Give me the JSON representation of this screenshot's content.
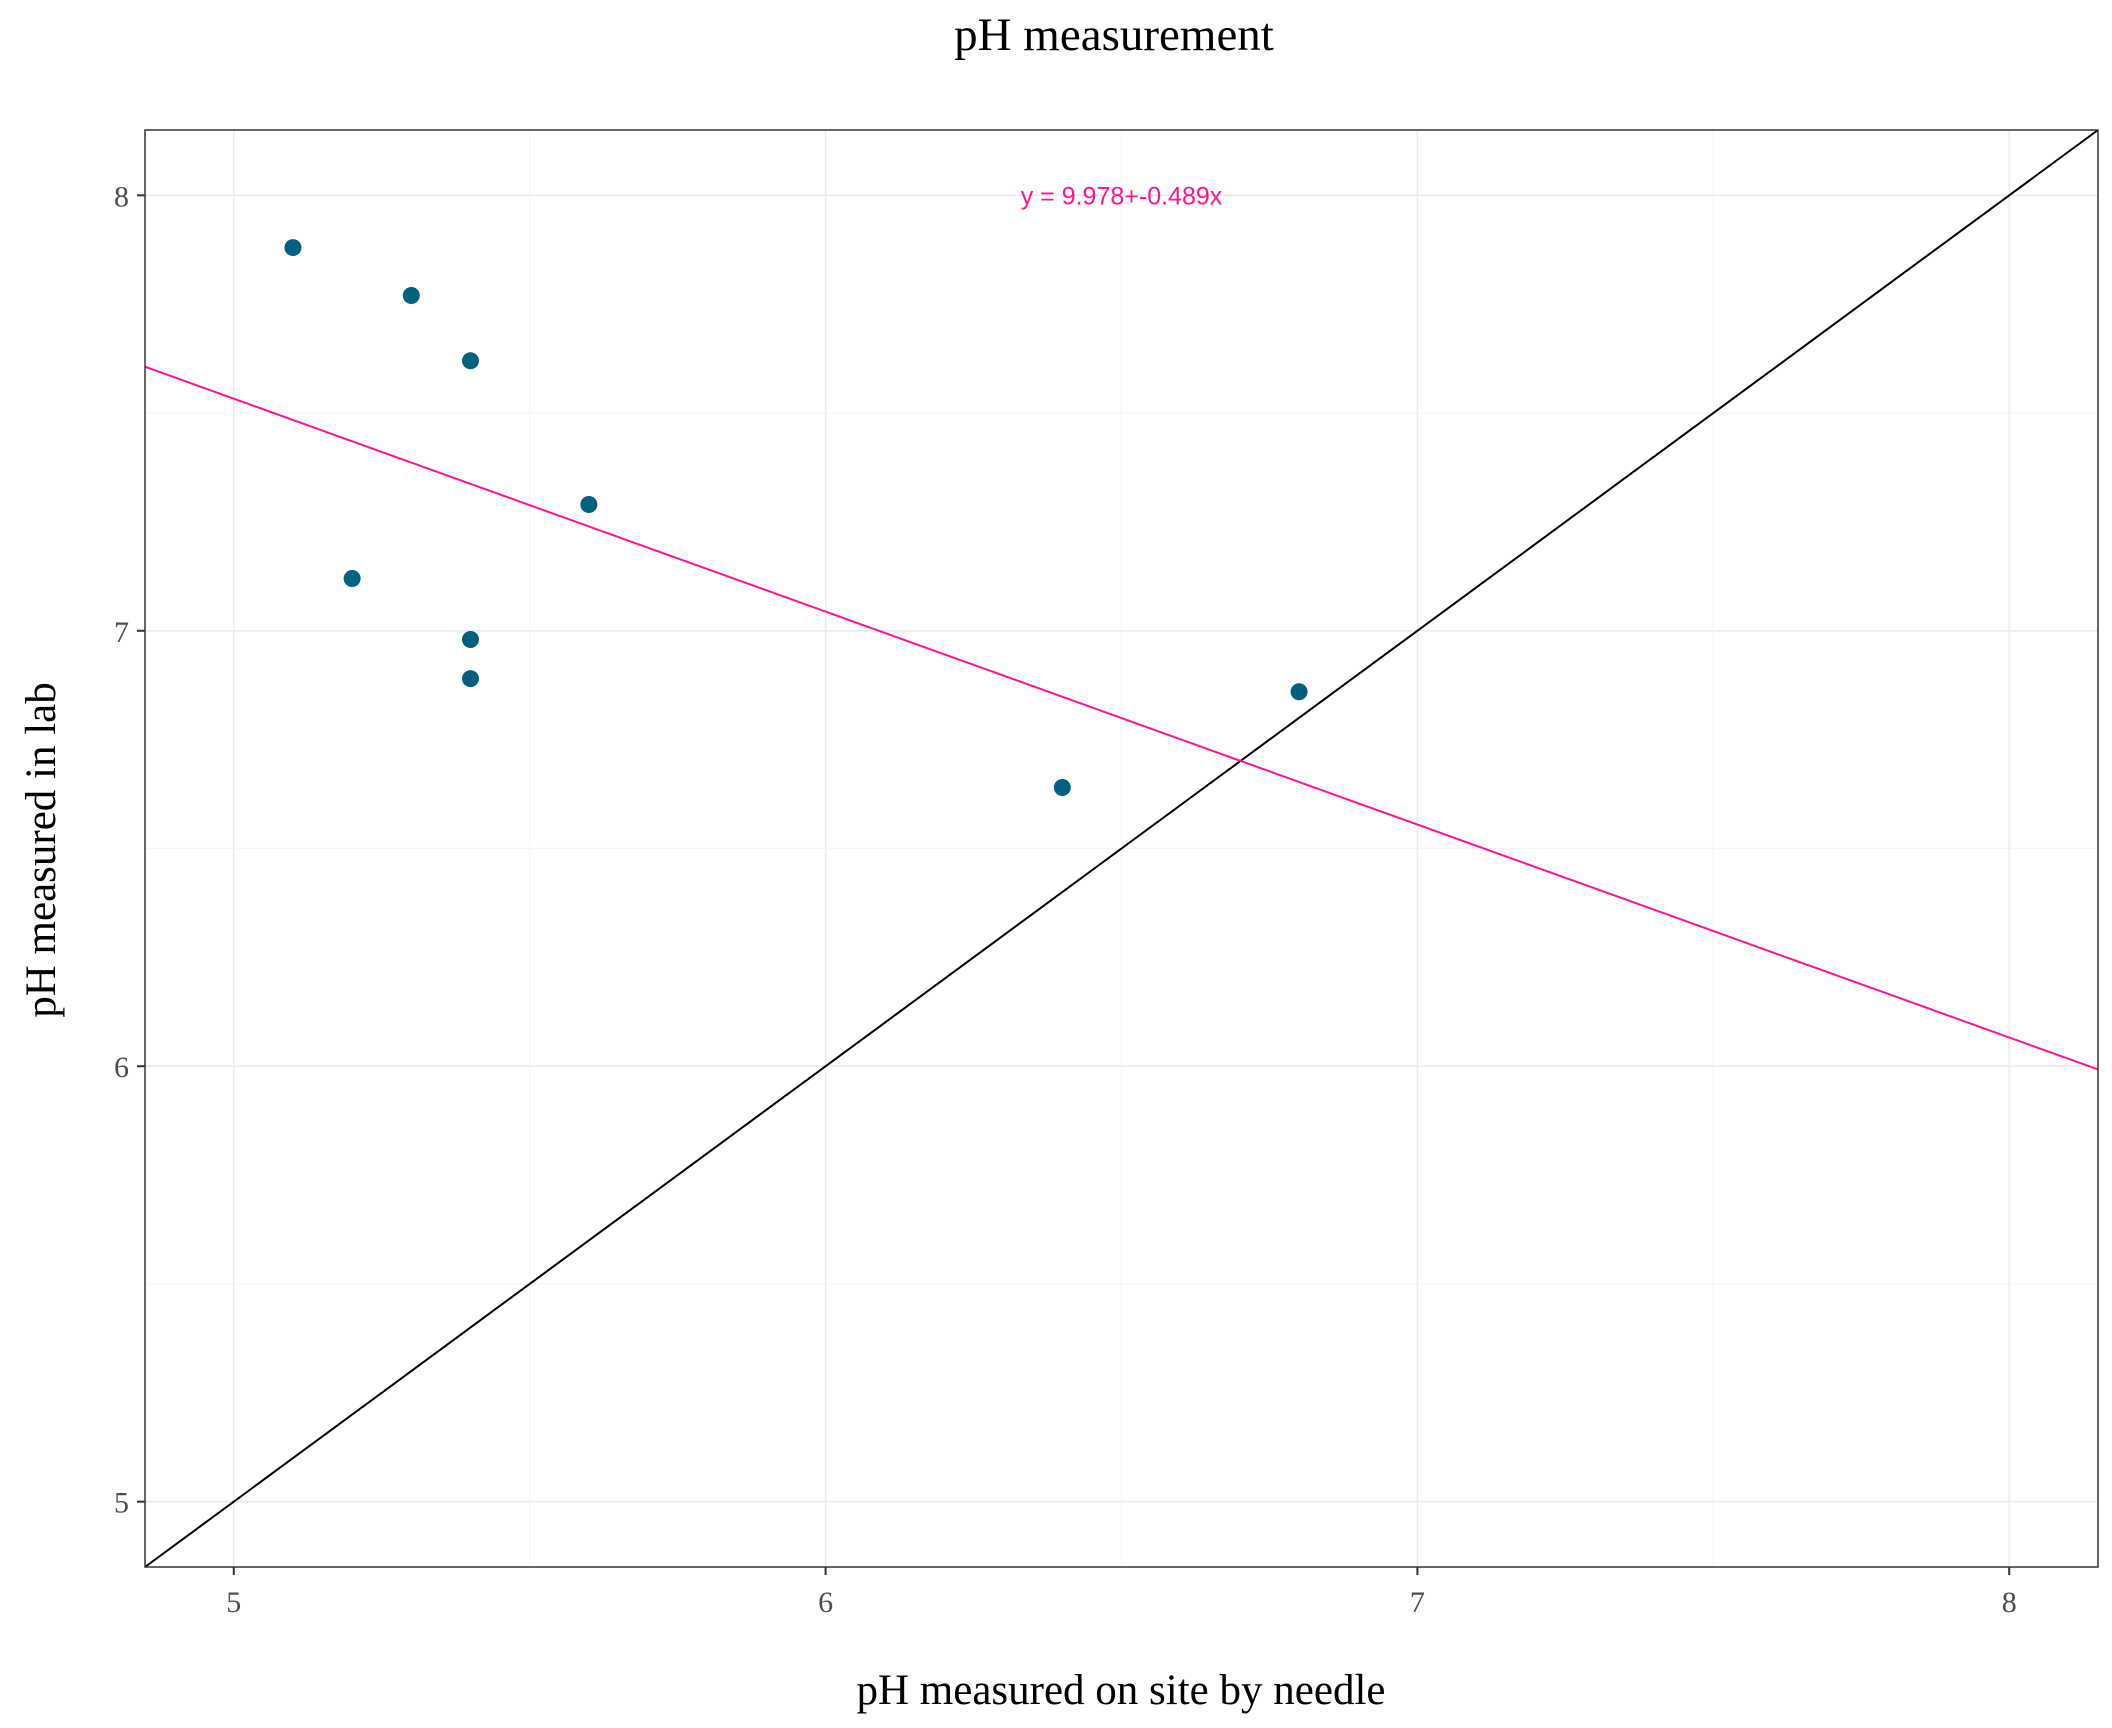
{
  "chart_data": {
    "type": "scatter",
    "title": "pH measurement",
    "xlabel": "pH measured on site by needle",
    "ylabel": "pH measured in lab",
    "xlim": [
      4.85,
      8.15
    ],
    "ylim": [
      4.85,
      8.15
    ],
    "x_ticks": [
      "5",
      "6",
      "7",
      "8"
    ],
    "y_ticks": [
      "5",
      "6",
      "7",
      "8"
    ],
    "grid": true,
    "legend": "none",
    "points": [
      {
        "x": 5.1,
        "y": 7.88
      },
      {
        "x": 5.3,
        "y": 7.77
      },
      {
        "x": 5.4,
        "y": 7.62
      },
      {
        "x": 5.6,
        "y": 7.29
      },
      {
        "x": 5.2,
        "y": 7.12
      },
      {
        "x": 5.4,
        "y": 6.98
      },
      {
        "x": 5.4,
        "y": 6.89
      },
      {
        "x": 6.8,
        "y": 6.86
      },
      {
        "x": 6.4,
        "y": 6.64
      }
    ],
    "regression_line": {
      "intercept": 9.978,
      "slope": -0.489,
      "color": "#ff1493"
    },
    "identity_line": {
      "color": "#000000"
    },
    "annotation": {
      "text": "y = 9.978+-0.489x",
      "x": 6.5,
      "y": 8.0,
      "color": "#ff1493"
    },
    "point_color": "#006080"
  }
}
